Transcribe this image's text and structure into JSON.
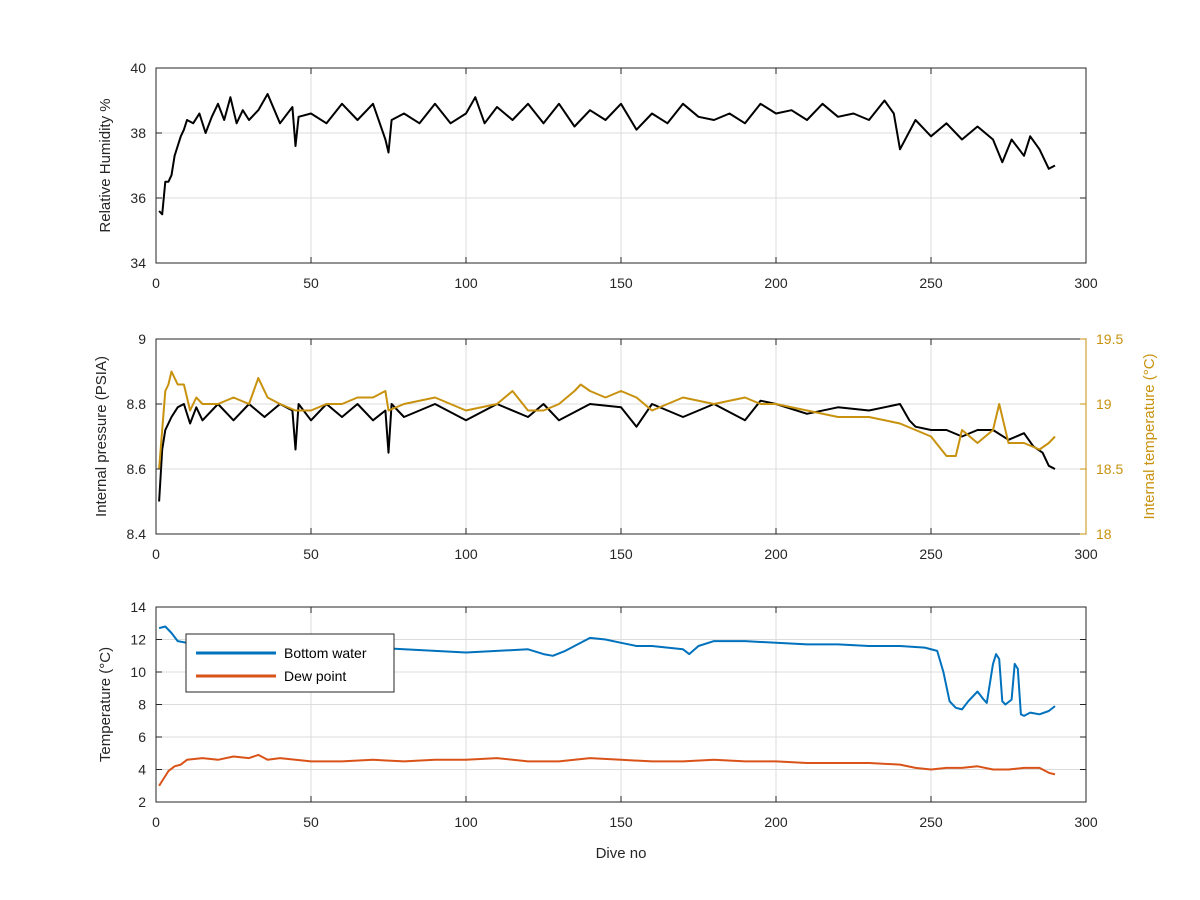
{
  "chart_data": [
    {
      "type": "line",
      "ylabel": "Relative Humidity %",
      "xlim": [
        0,
        300
      ],
      "ylim": [
        34,
        40
      ],
      "xticks": [
        0,
        50,
        100,
        150,
        200,
        250,
        300
      ],
      "yticks": [
        34,
        36,
        38,
        40
      ],
      "xtick_labels": [
        "0",
        "50",
        "100",
        "150",
        "200",
        "250",
        "300"
      ],
      "ytick_labels": [
        "34",
        "36",
        "38",
        "40"
      ],
      "grid": true,
      "colors": {
        "humidity": "#000000"
      },
      "series": [
        {
          "axis": "left",
          "x": [
            1,
            2,
            3,
            4,
            5,
            6,
            7,
            8,
            9,
            10,
            12,
            14,
            16,
            18,
            20,
            22,
            24,
            26,
            28,
            30,
            33,
            36,
            40,
            44,
            45,
            46,
            50,
            55,
            60,
            65,
            70,
            74,
            75,
            76,
            80,
            85,
            90,
            95,
            100,
            103,
            106,
            110,
            115,
            120,
            125,
            130,
            135,
            140,
            145,
            150,
            155,
            160,
            165,
            170,
            175,
            180,
            185,
            190,
            195,
            200,
            205,
            210,
            215,
            220,
            225,
            230,
            235,
            238,
            240,
            245,
            250,
            255,
            260,
            265,
            270,
            273,
            276,
            280,
            282,
            285,
            288,
            290
          ],
          "y": [
            35.6,
            35.5,
            36.5,
            36.5,
            36.7,
            37.3,
            37.6,
            37.9,
            38.1,
            38.4,
            38.3,
            38.6,
            38.0,
            38.5,
            38.9,
            38.4,
            39.1,
            38.3,
            38.7,
            38.4,
            38.7,
            39.2,
            38.3,
            38.8,
            37.6,
            38.5,
            38.6,
            38.3,
            38.9,
            38.4,
            38.9,
            37.8,
            37.4,
            38.4,
            38.6,
            38.3,
            38.9,
            38.3,
            38.6,
            39.1,
            38.3,
            38.8,
            38.4,
            38.9,
            38.3,
            38.9,
            38.2,
            38.7,
            38.4,
            38.9,
            38.1,
            38.6,
            38.3,
            38.9,
            38.5,
            38.4,
            38.6,
            38.3,
            38.9,
            38.6,
            38.7,
            38.4,
            38.9,
            38.5,
            38.6,
            38.4,
            39.0,
            38.6,
            37.5,
            38.4,
            37.9,
            38.3,
            37.8,
            38.2,
            37.8,
            37.1,
            37.8,
            37.3,
            37.9,
            37.5,
            36.9,
            37.0
          ]
        }
      ]
    },
    {
      "type": "line",
      "ylabel": "Internal pressure (PSIA)",
      "y2label": "Internal temperature (°C)",
      "xlim": [
        0,
        300
      ],
      "ylim": [
        8.4,
        9
      ],
      "y2lim": [
        18,
        19.5
      ],
      "xticks": [
        0,
        50,
        100,
        150,
        200,
        250,
        300
      ],
      "yticks": [
        8.4,
        8.6,
        8.8,
        9
      ],
      "y2ticks": [
        18,
        18.5,
        19,
        19.5
      ],
      "xtick_labels": [
        "0",
        "50",
        "100",
        "150",
        "200",
        "250",
        "300"
      ],
      "ytick_labels": [
        "8.4",
        "8.6",
        "8.8",
        "9"
      ],
      "y2tick_labels": [
        "18",
        "18.5",
        "19",
        "19.5"
      ],
      "grid": true,
      "colors": {
        "pressure": "#000000",
        "internal_temperature": "#C8920E"
      },
      "series": [
        {
          "axis": "left",
          "x": [
            1,
            2,
            3,
            5,
            7,
            9,
            11,
            13,
            15,
            20,
            25,
            30,
            35,
            40,
            44,
            45,
            46,
            50,
            55,
            60,
            65,
            70,
            74,
            75,
            76,
            80,
            90,
            100,
            110,
            120,
            125,
            130,
            140,
            150,
            155,
            160,
            170,
            180,
            190,
            195,
            200,
            210,
            220,
            230,
            240,
            243,
            245,
            250,
            255,
            260,
            265,
            270,
            275,
            280,
            283,
            286,
            288,
            290
          ],
          "y": [
            8.5,
            8.66,
            8.72,
            8.76,
            8.79,
            8.8,
            8.74,
            8.79,
            8.75,
            8.8,
            8.75,
            8.8,
            8.76,
            8.8,
            8.78,
            8.66,
            8.8,
            8.75,
            8.8,
            8.76,
            8.8,
            8.75,
            8.78,
            8.65,
            8.8,
            8.76,
            8.8,
            8.75,
            8.8,
            8.76,
            8.8,
            8.75,
            8.8,
            8.79,
            8.73,
            8.8,
            8.76,
            8.8,
            8.75,
            8.81,
            8.8,
            8.77,
            8.79,
            8.78,
            8.8,
            8.75,
            8.73,
            8.72,
            8.72,
            8.7,
            8.72,
            8.72,
            8.69,
            8.71,
            8.67,
            8.65,
            8.61,
            8.6
          ]
        },
        {
          "axis": "right",
          "x": [
            1,
            2,
            3,
            4,
            5,
            7,
            9,
            11,
            13,
            15,
            20,
            25,
            30,
            33,
            36,
            40,
            45,
            50,
            55,
            60,
            65,
            70,
            74,
            75,
            80,
            90,
            100,
            110,
            115,
            120,
            125,
            130,
            135,
            137,
            140,
            145,
            150,
            155,
            160,
            170,
            180,
            190,
            195,
            200,
            210,
            220,
            230,
            240,
            245,
            250,
            255,
            258,
            260,
            265,
            270,
            272,
            275,
            280,
            285,
            288,
            290
          ],
          "y": [
            18.5,
            18.8,
            19.1,
            19.15,
            19.25,
            19.15,
            19.15,
            18.95,
            19.05,
            19.0,
            19.0,
            19.05,
            19.0,
            19.2,
            19.05,
            19.0,
            18.95,
            18.95,
            19.0,
            19.0,
            19.05,
            19.05,
            19.1,
            18.95,
            19.0,
            19.05,
            18.95,
            19.0,
            19.1,
            18.95,
            18.95,
            19.0,
            19.1,
            19.15,
            19.1,
            19.05,
            19.1,
            19.05,
            18.95,
            19.05,
            19.0,
            19.05,
            19.0,
            19.0,
            18.95,
            18.9,
            18.9,
            18.85,
            18.8,
            18.75,
            18.6,
            18.6,
            18.8,
            18.7,
            18.8,
            19.0,
            18.7,
            18.7,
            18.65,
            18.7,
            18.75
          ]
        }
      ]
    },
    {
      "type": "line",
      "xlabel": "Dive no",
      "ylabel": "Temperature (°C)",
      "xlim": [
        0,
        300
      ],
      "ylim": [
        2,
        14
      ],
      "xticks": [
        0,
        50,
        100,
        150,
        200,
        250,
        300
      ],
      "yticks": [
        2,
        4,
        6,
        8,
        10,
        12,
        14
      ],
      "xtick_labels": [
        "0",
        "50",
        "100",
        "150",
        "200",
        "250",
        "300"
      ],
      "ytick_labels": [
        "2",
        "4",
        "6",
        "8",
        "10",
        "12",
        "14"
      ],
      "grid": true,
      "legend": {
        "position": "top-left",
        "entries": [
          "Bottom water",
          "Dew point"
        ]
      },
      "series": [
        {
          "name": "Bottom water",
          "color": "#0072BD",
          "x": [
            1,
            3,
            5,
            7,
            10,
            15,
            20,
            30,
            40,
            50,
            60,
            70,
            80,
            90,
            100,
            110,
            120,
            125,
            128,
            132,
            135,
            140,
            145,
            150,
            155,
            160,
            165,
            170,
            172,
            175,
            180,
            190,
            200,
            210,
            220,
            230,
            240,
            248,
            252,
            254,
            256,
            258,
            260,
            262,
            265,
            267,
            268,
            270,
            271,
            272,
            273,
            274,
            276,
            277,
            278,
            279,
            280,
            282,
            285,
            288,
            290
          ],
          "y": [
            12.7,
            12.8,
            12.4,
            11.9,
            11.8,
            11.9,
            11.8,
            11.7,
            11.6,
            11.6,
            11.5,
            11.5,
            11.4,
            11.3,
            11.2,
            11.3,
            11.4,
            11.1,
            11.0,
            11.3,
            11.6,
            12.1,
            12.0,
            11.8,
            11.6,
            11.6,
            11.5,
            11.4,
            11.1,
            11.6,
            11.9,
            11.9,
            11.8,
            11.7,
            11.7,
            11.6,
            11.6,
            11.5,
            11.3,
            10.0,
            8.2,
            7.8,
            7.7,
            8.2,
            8.8,
            8.3,
            8.1,
            10.5,
            11.1,
            10.8,
            8.2,
            8.0,
            8.3,
            10.5,
            10.2,
            7.4,
            7.3,
            7.5,
            7.4,
            7.6,
            7.9
          ]
        },
        {
          "name": "Dew point",
          "color": "#D95319",
          "x": [
            1,
            2,
            4,
            6,
            8,
            10,
            15,
            20,
            25,
            30,
            33,
            36,
            40,
            45,
            50,
            60,
            70,
            80,
            90,
            100,
            110,
            120,
            130,
            140,
            150,
            160,
            170,
            180,
            190,
            200,
            210,
            220,
            230,
            240,
            245,
            250,
            255,
            260,
            265,
            270,
            275,
            280,
            285,
            288,
            290
          ],
          "y": [
            3.0,
            3.3,
            3.9,
            4.2,
            4.3,
            4.6,
            4.7,
            4.6,
            4.8,
            4.7,
            4.9,
            4.6,
            4.7,
            4.6,
            4.5,
            4.5,
            4.6,
            4.5,
            4.6,
            4.6,
            4.7,
            4.5,
            4.5,
            4.7,
            4.6,
            4.5,
            4.5,
            4.6,
            4.5,
            4.5,
            4.4,
            4.4,
            4.4,
            4.3,
            4.1,
            4.0,
            4.1,
            4.1,
            4.2,
            4.0,
            4.0,
            4.1,
            4.1,
            3.8,
            3.7
          ]
        }
      ]
    }
  ]
}
